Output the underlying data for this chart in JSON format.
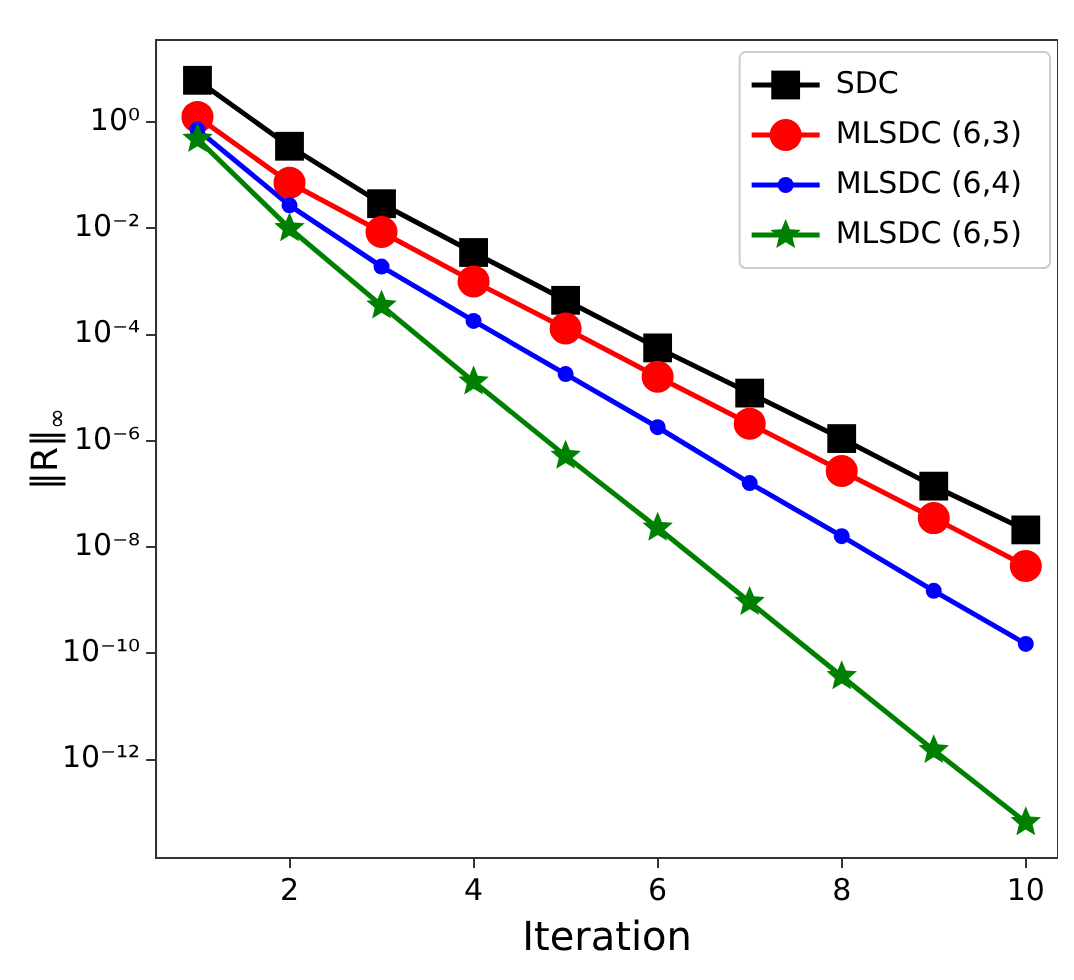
{
  "chart_data": {
    "type": "line",
    "xlabel": "Iteration",
    "ylabel": "‖R‖$_{∞}$",
    "x": [
      1,
      2,
      3,
      4,
      5,
      6,
      7,
      8,
      9,
      10
    ],
    "series": [
      {
        "name": "SDC",
        "color": "#000000",
        "marker": "square",
        "values": [
          6.1,
          0.35,
          0.029,
          0.0035,
          0.00044,
          5.6e-05,
          7.9e-06,
          1.1e-06,
          1.4e-07,
          2.1e-08
        ]
      },
      {
        "name": "MLSDC (6,3)",
        "color": "#ff0000",
        "marker": "circle",
        "values": [
          1.25,
          0.072,
          0.0085,
          0.001,
          0.00013,
          1.6e-05,
          2.1e-06,
          2.7e-07,
          3.5e-08,
          4.4e-09
        ]
      },
      {
        "name": "MLSDC (6,4)",
        "color": "#0000ff",
        "marker": "circle",
        "values": [
          0.72,
          0.027,
          0.0019,
          0.00018,
          1.8e-05,
          1.8e-06,
          1.6e-07,
          1.6e-08,
          1.5e-09,
          1.5e-10
        ]
      },
      {
        "name": "MLSDC (6,5)",
        "color": "#008000",
        "marker": "star",
        "values": [
          0.48,
          0.01,
          0.00035,
          1.3e-05,
          5.2e-07,
          2.3e-08,
          9.2e-10,
          3.7e-11,
          1.5e-12,
          6.6e-14
        ]
      }
    ],
    "log": "y",
    "xlim": [
      0.55,
      10.35
    ],
    "ylim": [
      1.4e-14,
      35
    ],
    "xticks": [
      2,
      4,
      6,
      8,
      10
    ],
    "yticks": [
      {
        "value": 1,
        "label": "10⁰"
      },
      {
        "value": 0.01,
        "label": "10⁻²"
      },
      {
        "value": 0.0001,
        "label": "10⁻⁴"
      },
      {
        "value": 1e-06,
        "label": "10⁻⁶"
      },
      {
        "value": 1e-08,
        "label": "10⁻⁸"
      },
      {
        "value": 1e-10,
        "label": "10⁻¹⁰"
      },
      {
        "value": 1e-12,
        "label": "10⁻¹²"
      }
    ],
    "grid": false,
    "legend": "top right",
    "line_style": "solid"
  }
}
